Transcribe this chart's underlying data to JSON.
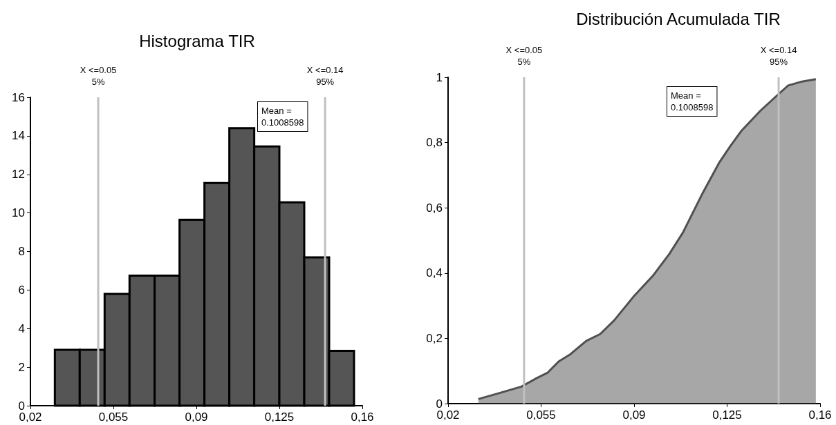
{
  "chart_data": [
    {
      "type": "histogram",
      "title": "Histograma TIR",
      "bins": [
        0.0303,
        0.0408,
        0.0513,
        0.0618,
        0.0724,
        0.0829,
        0.0934,
        0.1039,
        0.1144,
        0.125,
        0.1355,
        0.146,
        0.1565
      ],
      "values": [
        2.9,
        2.9,
        5.8,
        6.75,
        6.75,
        9.65,
        11.55,
        14.4,
        13.45,
        10.55,
        7.7,
        2.85
      ],
      "color": "#555555",
      "xlim": [
        0.02,
        0.16
      ],
      "xticks": [
        {
          "value": 0.02,
          "label": "0,02"
        },
        {
          "value": 0.055,
          "label": "0,055"
        },
        {
          "value": 0.09,
          "label": "0,09"
        },
        {
          "value": 0.125,
          "label": "0,125"
        },
        {
          "value": 0.16,
          "label": "0,16"
        }
      ],
      "ylim": [
        0,
        16
      ],
      "yticks": [
        0,
        2,
        4,
        6,
        8,
        10,
        12,
        14,
        16
      ],
      "grid": false,
      "ref_lines": [
        {
          "axis": "x",
          "value": 0.0486,
          "label": "X <=0.05\n5%",
          "color": "#c0c0c0"
        },
        {
          "axis": "x",
          "value": 0.1443,
          "label": "X <=0.14\n95%",
          "color": "#c0c0c0"
        }
      ],
      "annotations": [
        "Mean =\n0.1008598"
      ]
    },
    {
      "type": "area",
      "title": "Distribución Acumulada TIR",
      "series": [
        {
          "color": "#505050",
          "x": [
            0.0314,
            0.0387,
            0.0476,
            0.0533,
            0.0575,
            0.0616,
            0.0658,
            0.072,
            0.0772,
            0.0825,
            0.0897,
            0.097,
            0.1033,
            0.1085,
            0.1158,
            0.122,
            0.1262,
            0.1303,
            0.1376,
            0.1439,
            0.148,
            0.1532,
            0.1584
          ],
          "values": [
            0.014,
            0.031,
            0.052,
            0.078,
            0.095,
            0.129,
            0.15,
            0.192,
            0.213,
            0.255,
            0.327,
            0.391,
            0.459,
            0.526,
            0.645,
            0.738,
            0.789,
            0.835,
            0.898,
            0.945,
            0.975,
            0.987,
            0.994
          ]
        }
      ],
      "xlim": [
        0.02,
        0.16
      ],
      "xticks": [
        {
          "value": 0.02,
          "label": "0,02"
        },
        {
          "value": 0.055,
          "label": "0,055"
        },
        {
          "value": 0.09,
          "label": "0,09"
        },
        {
          "value": 0.125,
          "label": "0,125"
        },
        {
          "value": 0.16,
          "label": "0,16"
        }
      ],
      "ylim": [
        0,
        1
      ],
      "yticks": [
        0,
        {
          "value": 0.2,
          "label": "0,2"
        },
        {
          "value": 0.4,
          "label": "0,4"
        },
        {
          "value": 0.6,
          "label": "0,6"
        },
        {
          "value": 0.8,
          "label": "0,8"
        },
        1
      ],
      "grid": false,
      "ref_lines": [
        {
          "axis": "x",
          "value": 0.0486,
          "label": "X <=0.05\n5%",
          "color": "#c0c0c0"
        },
        {
          "axis": "x",
          "value": 0.1444,
          "label": "X <=0.14\n95%",
          "color": "#c0c0c0"
        }
      ],
      "annotations": [
        "Mean =\n0.1008598"
      ]
    }
  ]
}
